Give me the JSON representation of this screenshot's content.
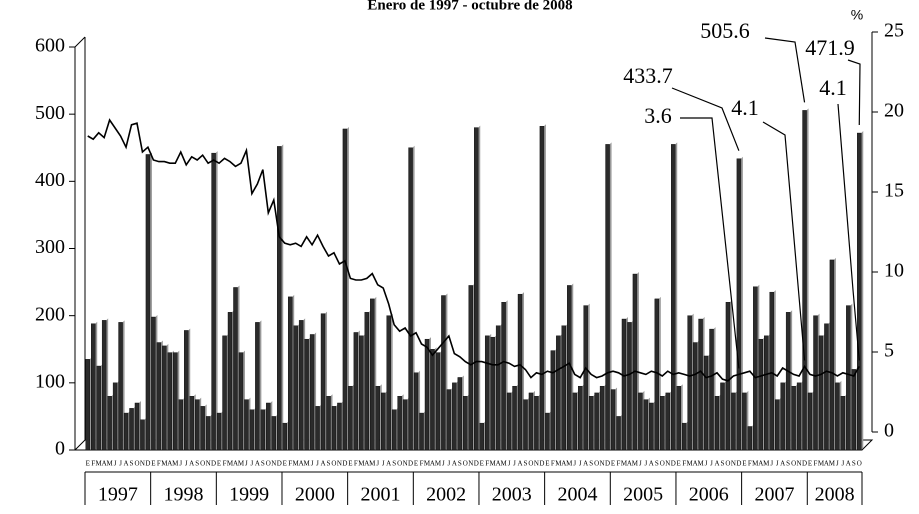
{
  "chart_data": {
    "type": "bar",
    "title": "Enero de 1997 - octubre de 2008",
    "y2_unit": "%",
    "categories": [
      "E",
      "F",
      "M",
      "A",
      "M",
      "J",
      "J",
      "A",
      "S",
      "O",
      "N",
      "D",
      "E",
      "F",
      "M",
      "A",
      "M",
      "J",
      "J",
      "A",
      "S",
      "O",
      "N",
      "D",
      "E",
      "F",
      "M",
      "A",
      "M",
      "J",
      "J",
      "A",
      "S",
      "O",
      "N",
      "D",
      "E",
      "F",
      "M",
      "A",
      "M",
      "J",
      "J",
      "A",
      "S",
      "O",
      "N",
      "D",
      "E",
      "F",
      "M",
      "A",
      "M",
      "J",
      "J",
      "A",
      "S",
      "O",
      "N",
      "D",
      "E",
      "F",
      "M",
      "A",
      "M",
      "J",
      "J",
      "A",
      "S",
      "O",
      "N",
      "D",
      "E",
      "F",
      "M",
      "A",
      "M",
      "J",
      "J",
      "A",
      "S",
      "O",
      "N",
      "D",
      "E",
      "F",
      "M",
      "A",
      "M",
      "J",
      "J",
      "A",
      "S",
      "O",
      "N",
      "D",
      "E",
      "F",
      "M",
      "A",
      "M",
      "J",
      "J",
      "A",
      "S",
      "O",
      "N",
      "D",
      "E",
      "F",
      "M",
      "A",
      "M",
      "J",
      "J",
      "A",
      "S",
      "O",
      "N",
      "D",
      "E",
      "F",
      "M",
      "A",
      "M",
      "J",
      "J",
      "A",
      "S",
      "O",
      "N",
      "D",
      "E",
      "F",
      "M",
      "A",
      "M",
      "J",
      "J",
      "A",
      "S",
      "O"
    ],
    "years": [
      "1997",
      "1998",
      "1999",
      "2000",
      "2001",
      "2002",
      "2003",
      "2004",
      "2005",
      "2006",
      "2007",
      "2008"
    ],
    "series": [
      {
        "type": "bar",
        "color": "#2b2b2b",
        "values": [
          135,
          188,
          125,
          193,
          80,
          100,
          190,
          55,
          62,
          70,
          45,
          440,
          198,
          160,
          155,
          145,
          145,
          75,
          178,
          80,
          75,
          65,
          50,
          442,
          55,
          170,
          205,
          242,
          145,
          75,
          60,
          190,
          60,
          70,
          50,
          452,
          40,
          228,
          185,
          193,
          165,
          172,
          65,
          203,
          80,
          65,
          70,
          478,
          95,
          175,
          170,
          205,
          225,
          95,
          85,
          200,
          60,
          80,
          75,
          450,
          115,
          55,
          165,
          150,
          145,
          230,
          90,
          100,
          108,
          80,
          245,
          480,
          40,
          170,
          168,
          185,
          220,
          85,
          95,
          232,
          75,
          85,
          80,
          482,
          55,
          148,
          170,
          185,
          245,
          85,
          95,
          215,
          80,
          85,
          95,
          455,
          90,
          50,
          195,
          190,
          262,
          85,
          75,
          70,
          225,
          80,
          85,
          455,
          95,
          40,
          200,
          160,
          195,
          140,
          180,
          80,
          100,
          220,
          85,
          433.7,
          85,
          35,
          243,
          165,
          170,
          235,
          75,
          100,
          205,
          95,
          100,
          505.6,
          85,
          200,
          170,
          188,
          283,
          100,
          80,
          215,
          120,
          471.9
        ]
      },
      {
        "type": "line",
        "axis": "y2",
        "color": "#000000",
        "values": [
          18.5,
          18.3,
          18.7,
          18.4,
          19.5,
          19.0,
          18.5,
          17.8,
          19.2,
          19.3,
          17.5,
          17.8,
          17.0,
          16.9,
          16.9,
          16.8,
          16.8,
          17.5,
          16.7,
          17.2,
          17.0,
          17.3,
          16.8,
          17.0,
          16.8,
          17.1,
          16.9,
          16.6,
          16.8,
          17.6,
          14.9,
          15.5,
          16.4,
          13.7,
          14.5,
          12.2,
          11.8,
          11.7,
          11.8,
          11.6,
          12.2,
          11.7,
          12.3,
          11.6,
          11.0,
          11.2,
          10.5,
          10.7,
          9.6,
          9.5,
          9.5,
          9.6,
          9.9,
          9.2,
          9.0,
          8.0,
          6.7,
          6.3,
          6.5,
          6.0,
          6.2,
          5.5,
          5.3,
          4.8,
          5.2,
          5.6,
          6.0,
          4.9,
          4.7,
          4.4,
          4.2,
          4.4,
          4.4,
          4.3,
          4.2,
          4.2,
          4.4,
          4.3,
          4.1,
          4.2,
          3.9,
          3.4,
          3.7,
          3.6,
          3.8,
          3.7,
          3.9,
          4.1,
          4.3,
          3.6,
          3.4,
          4.0,
          3.6,
          3.4,
          3.5,
          3.7,
          3.8,
          3.7,
          3.5,
          3.6,
          3.8,
          3.7,
          3.6,
          3.8,
          3.7,
          3.5,
          3.8,
          3.6,
          3.7,
          3.6,
          3.5,
          3.6,
          3.8,
          3.4,
          3.5,
          3.7,
          3.3,
          3.2,
          3.5,
          3.6,
          3.7,
          3.8,
          3.4,
          3.5,
          3.6,
          3.7,
          3.5,
          4.0,
          3.8,
          3.6,
          3.5,
          4.1,
          3.6,
          3.5,
          3.6,
          3.8,
          3.7,
          3.5,
          3.7,
          3.6,
          3.5,
          4.1
        ]
      }
    ],
    "ylim": [
      0,
      600
    ],
    "yticks": [
      0,
      100,
      200,
      300,
      400,
      500,
      600
    ],
    "y2lim": [
      0,
      25
    ],
    "y2ticks": [
      0,
      5,
      10,
      15,
      20,
      25
    ]
  }
}
